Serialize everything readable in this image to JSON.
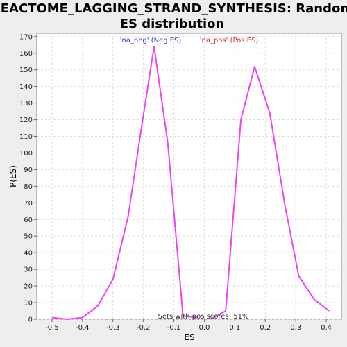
{
  "chart_data": {
    "type": "line",
    "title_lines": [
      "REACTOME_LAGGING_STRAND_SYNTHESIS: Random",
      "ES distribution"
    ],
    "xlabel": "ES",
    "ylabel": "P(ES)",
    "xlim": [
      -0.55,
      0.45
    ],
    "ylim": [
      0,
      172
    ],
    "xticks": [
      -0.5,
      -0.4,
      -0.3,
      -0.2,
      -0.1,
      0.0,
      0.1,
      0.2,
      0.3,
      0.4
    ],
    "xtick_labels": [
      "-0.5",
      "-0.4",
      "-0.3",
      "-0.2",
      "-0.1",
      "0.0",
      "0.1",
      "0.2",
      "0.3",
      "0.4"
    ],
    "yticks": [
      0,
      10,
      20,
      30,
      40,
      50,
      60,
      70,
      80,
      90,
      100,
      110,
      120,
      130,
      140,
      150,
      160,
      170
    ],
    "grid": true,
    "series": [
      {
        "name": "'na_neg' (Neg ES)",
        "color": "#ee44ee",
        "x": [
          -0.5,
          -0.45,
          -0.4,
          -0.35,
          -0.3,
          -0.25,
          -0.205,
          -0.165,
          -0.12,
          -0.07,
          -0.02
        ],
        "y": [
          1,
          0,
          1,
          8,
          24,
          62,
          117,
          164,
          106,
          2,
          1
        ]
      },
      {
        "name": "'na_pos' (Pos ES)",
        "color": "#ee44ee",
        "x": [
          0.02,
          0.07,
          0.12,
          0.165,
          0.215,
          0.265,
          0.31,
          0.36,
          0.41
        ],
        "y": [
          0,
          5,
          120,
          152,
          124,
          68,
          26,
          12,
          5
        ]
      }
    ],
    "legend": [
      {
        "label": "'na_neg' (Neg ES)",
        "color": "#3333cc"
      },
      {
        "label": "'na_pos' (Pos ES)",
        "color": "#cc3333"
      }
    ],
    "annotation": "Sets with pos scores: 51%"
  }
}
